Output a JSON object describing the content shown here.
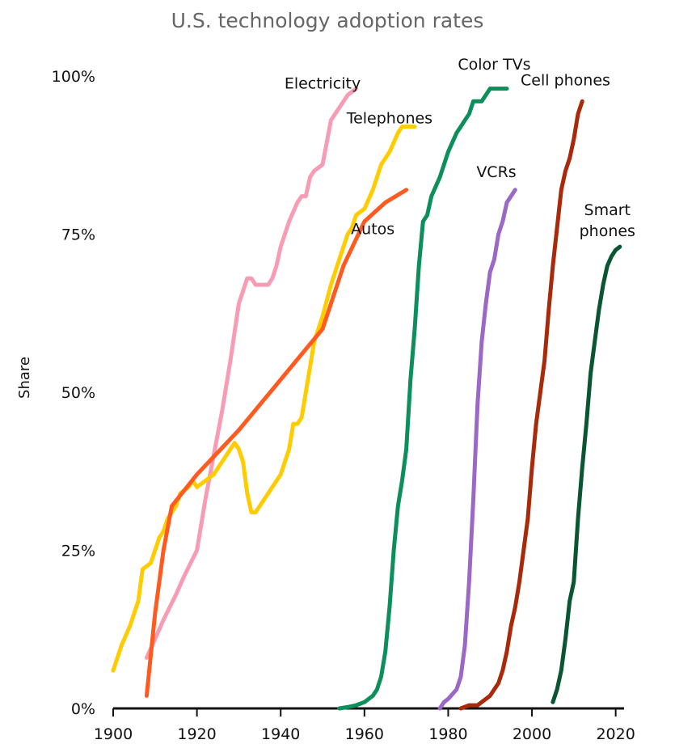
{
  "chart_data": {
    "type": "line",
    "title": "U.S. technology adoption rates",
    "ylabel": "Share",
    "xlabel": "",
    "xlim": [
      1900,
      2022
    ],
    "ylim": [
      0,
      100
    ],
    "x_ticks": [
      1900,
      1920,
      1940,
      1960,
      1980,
      2000,
      2020
    ],
    "x_tick_labels": [
      "1900",
      "1920",
      "1940",
      "1960",
      "1980",
      "2000",
      "2020"
    ],
    "y_ticks": [
      0,
      25,
      50,
      75,
      100
    ],
    "y_tick_labels": [
      "0%",
      "25%",
      "50%",
      "75%",
      "100%"
    ],
    "grid": false,
    "legend": "none",
    "series": [
      {
        "name": "Electricity",
        "color": "#f79cb4",
        "points": [
          [
            1908,
            8
          ],
          [
            1910,
            11
          ],
          [
            1912,
            14
          ],
          [
            1915,
            18
          ],
          [
            1917,
            21
          ],
          [
            1920,
            25
          ],
          [
            1922,
            33
          ],
          [
            1924,
            40
          ],
          [
            1926,
            47
          ],
          [
            1928,
            55
          ],
          [
            1930,
            64
          ],
          [
            1931,
            66
          ],
          [
            1932,
            68
          ],
          [
            1933,
            68
          ],
          [
            1934,
            67
          ],
          [
            1935,
            67
          ],
          [
            1936,
            67
          ],
          [
            1937,
            67
          ],
          [
            1938,
            68
          ],
          [
            1939,
            70
          ],
          [
            1940,
            73
          ],
          [
            1941,
            75
          ],
          [
            1942,
            77
          ],
          [
            1944,
            80
          ],
          [
            1945,
            81
          ],
          [
            1946,
            81
          ],
          [
            1947,
            84
          ],
          [
            1948,
            85
          ],
          [
            1950,
            86
          ],
          [
            1952,
            93
          ],
          [
            1954,
            95
          ],
          [
            1956,
            97
          ],
          [
            1958,
            98
          ]
        ]
      },
      {
        "name": "Telephones",
        "color": "#ffcc00",
        "points": [
          [
            1900,
            6
          ],
          [
            1902,
            10
          ],
          [
            1904,
            13
          ],
          [
            1906,
            17
          ],
          [
            1907,
            22
          ],
          [
            1909,
            23
          ],
          [
            1911,
            27
          ],
          [
            1912,
            28
          ],
          [
            1913,
            30
          ],
          [
            1915,
            32
          ],
          [
            1916,
            34
          ],
          [
            1918,
            35
          ],
          [
            1919,
            36
          ],
          [
            1920,
            35
          ],
          [
            1922,
            36
          ],
          [
            1924,
            37
          ],
          [
            1926,
            39
          ],
          [
            1928,
            41
          ],
          [
            1929,
            42
          ],
          [
            1930,
            41
          ],
          [
            1931,
            39
          ],
          [
            1932,
            34
          ],
          [
            1933,
            31
          ],
          [
            1934,
            31
          ],
          [
            1935,
            32
          ],
          [
            1937,
            34
          ],
          [
            1938,
            35
          ],
          [
            1940,
            37
          ],
          [
            1942,
            41
          ],
          [
            1943,
            45
          ],
          [
            1944,
            45
          ],
          [
            1945,
            46
          ],
          [
            1947,
            54
          ],
          [
            1948,
            58
          ],
          [
            1950,
            62
          ],
          [
            1952,
            67
          ],
          [
            1954,
            71
          ],
          [
            1956,
            75
          ],
          [
            1957,
            76
          ],
          [
            1958,
            78
          ],
          [
            1960,
            79
          ],
          [
            1962,
            82
          ],
          [
            1964,
            86
          ],
          [
            1966,
            88
          ],
          [
            1968,
            91
          ],
          [
            1969,
            92
          ],
          [
            1972,
            92
          ]
        ]
      },
      {
        "name": "Autos",
        "color": "#ff5a1f",
        "points": [
          [
            1908,
            2
          ],
          [
            1910,
            15
          ],
          [
            1912,
            25
          ],
          [
            1914,
            32
          ],
          [
            1920,
            37
          ],
          [
            1930,
            44
          ],
          [
            1940,
            52
          ],
          [
            1950,
            60
          ],
          [
            1955,
            70
          ],
          [
            1960,
            77
          ],
          [
            1965,
            80
          ],
          [
            1970,
            82
          ]
        ]
      },
      {
        "name": "Color TVs",
        "color": "#0c8f5a",
        "points": [
          [
            1954,
            0
          ],
          [
            1956,
            0.2
          ],
          [
            1958,
            0.5
          ],
          [
            1960,
            1
          ],
          [
            1962,
            2
          ],
          [
            1963,
            3
          ],
          [
            1964,
            5
          ],
          [
            1965,
            9
          ],
          [
            1966,
            16
          ],
          [
            1967,
            25
          ],
          [
            1968,
            32
          ],
          [
            1969,
            36
          ],
          [
            1970,
            41
          ],
          [
            1971,
            52
          ],
          [
            1972,
            60
          ],
          [
            1973,
            70
          ],
          [
            1974,
            77
          ],
          [
            1975,
            78
          ],
          [
            1976,
            81
          ],
          [
            1978,
            84
          ],
          [
            1980,
            88
          ],
          [
            1982,
            91
          ],
          [
            1983,
            92
          ],
          [
            1984,
            93
          ],
          [
            1985,
            94
          ],
          [
            1986,
            96
          ],
          [
            1988,
            96
          ],
          [
            1990,
            98
          ],
          [
            1992,
            98
          ],
          [
            1994,
            98
          ]
        ]
      },
      {
        "name": "VCRs",
        "color": "#9b68c6",
        "points": [
          [
            1978,
            0
          ],
          [
            1979,
            1
          ],
          [
            1980,
            1.5
          ],
          [
            1982,
            3
          ],
          [
            1983,
            5
          ],
          [
            1984,
            10
          ],
          [
            1985,
            20
          ],
          [
            1986,
            33
          ],
          [
            1987,
            48
          ],
          [
            1988,
            58
          ],
          [
            1989,
            64
          ],
          [
            1990,
            69
          ],
          [
            1991,
            71
          ],
          [
            1992,
            75
          ],
          [
            1993,
            77
          ],
          [
            1994,
            80
          ],
          [
            1996,
            82
          ]
        ]
      },
      {
        "name": "Cell phones",
        "color": "#a82a0a",
        "points": [
          [
            1983,
            0
          ],
          [
            1985,
            0.5
          ],
          [
            1987,
            0.5
          ],
          [
            1990,
            2
          ],
          [
            1992,
            4
          ],
          [
            1993,
            6
          ],
          [
            1994,
            9
          ],
          [
            1995,
            13
          ],
          [
            1996,
            16
          ],
          [
            1997,
            20
          ],
          [
            1998,
            25
          ],
          [
            1999,
            30
          ],
          [
            2000,
            38
          ],
          [
            2001,
            45
          ],
          [
            2002,
            50
          ],
          [
            2003,
            55
          ],
          [
            2004,
            63
          ],
          [
            2005,
            70
          ],
          [
            2006,
            76
          ],
          [
            2007,
            82
          ],
          [
            2008,
            85
          ],
          [
            2009,
            87
          ],
          [
            2010,
            90
          ],
          [
            2011,
            94
          ],
          [
            2012,
            96
          ]
        ]
      },
      {
        "name": "Smart phones",
        "color": "#0a5532",
        "points": [
          [
            2005,
            1
          ],
          [
            2006,
            3
          ],
          [
            2007,
            6
          ],
          [
            2008,
            11
          ],
          [
            2009,
            17
          ],
          [
            2010,
            20
          ],
          [
            2011,
            30
          ],
          [
            2012,
            38
          ],
          [
            2013,
            45
          ],
          [
            2014,
            53
          ],
          [
            2015,
            58
          ],
          [
            2016,
            63
          ],
          [
            2017,
            67
          ],
          [
            2018,
            70
          ],
          [
            2019,
            71.5
          ],
          [
            2020,
            72.5
          ],
          [
            2021,
            73
          ]
        ]
      }
    ],
    "annotations": [
      {
        "series": "Electricity",
        "lines": [
          "Electricity"
        ],
        "x": 1950,
        "y": 98
      },
      {
        "series": "Telephones",
        "lines": [
          "Telephones"
        ],
        "x": 1966,
        "y": 92.5
      },
      {
        "series": "Autos",
        "lines": [
          "Autos"
        ],
        "x": 1962,
        "y": 75
      },
      {
        "series": "Color TVs",
        "lines": [
          "Color TVs"
        ],
        "x": 1991,
        "y": 101
      },
      {
        "series": "VCRs",
        "lines": [
          "VCRs"
        ],
        "x": 1991.5,
        "y": 84
      },
      {
        "series": "Cell phones",
        "lines": [
          "Cell phones"
        ],
        "x": 2008,
        "y": 98.5
      },
      {
        "series": "Smart phones",
        "lines": [
          "Smart",
          "phones"
        ],
        "x": 2018,
        "y": 78
      }
    ]
  }
}
